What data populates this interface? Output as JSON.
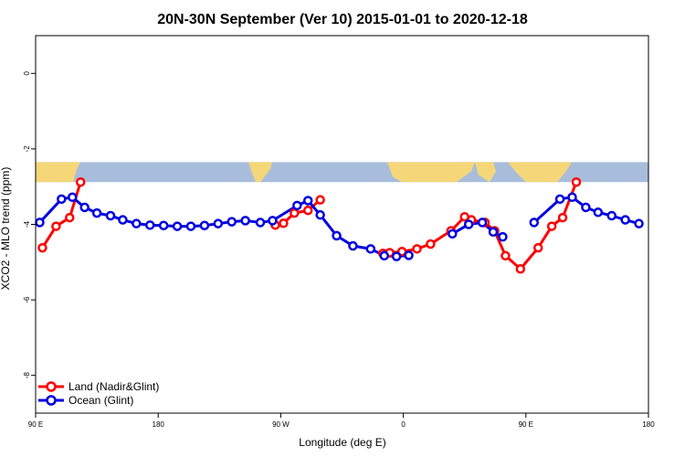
{
  "chart_data": {
    "type": "line",
    "title": "20N-30N September (Ver 10)   2015-01-01 to 2020-12-18",
    "xlabel": "Longitude (deg E)",
    "ylabel": "XCO2 - MLO trend (ppm)",
    "xlim": [
      90,
      540
    ],
    "ylim": [
      -9,
      1
    ],
    "x_ticks": [
      {
        "value": 90,
        "label": "90 E"
      },
      {
        "value": 180,
        "label": "180"
      },
      {
        "value": 270,
        "label": "90 W"
      },
      {
        "value": 360,
        "label": "0"
      },
      {
        "value": 450,
        "label": "90 E"
      },
      {
        "value": 540,
        "label": "180"
      }
    ],
    "y_ticks": [
      {
        "value": 0,
        "label": "0"
      },
      {
        "value": -2,
        "label": "-2"
      },
      {
        "value": -4,
        "label": "-4"
      },
      {
        "value": -6,
        "label": "-6"
      },
      {
        "value": -8,
        "label": "-8"
      }
    ],
    "legend_position": "bottom-left",
    "colors": {
      "land": "#ff0000",
      "ocean": "#0000e0",
      "map_ocean": "#a8bddc",
      "map_land": "#f5d779"
    },
    "map_band": {
      "lat_range": "20N-30N",
      "y_top": -2.35,
      "y_bottom": -2.88
    },
    "series": [
      {
        "name": "Land (Nadir&Glint)",
        "color": "#ff0000",
        "segments": [
          [
            [
              95,
              -4.62
            ],
            [
              105,
              -4.05
            ],
            [
              115,
              -3.82
            ],
            [
              123,
              -2.88
            ]
          ],
          [
            [
              266,
              -4.02
            ],
            [
              272,
              -3.97
            ],
            [
              280,
              -3.7
            ],
            [
              290,
              -3.63
            ],
            [
              299,
              -3.35
            ]
          ],
          [
            [
              345,
              -4.77
            ],
            [
              350,
              -4.75
            ],
            [
              359,
              -4.72
            ],
            [
              370,
              -4.65
            ],
            [
              380,
              -4.52
            ],
            [
              395,
              -4.17
            ],
            [
              405,
              -3.8
            ],
            [
              410,
              -3.88
            ],
            [
              420,
              -3.95
            ],
            [
              427,
              -4.17
            ],
            [
              435,
              -4.83
            ],
            [
              446,
              -5.18
            ],
            [
              459,
              -4.62
            ],
            [
              469,
              -4.05
            ],
            [
              477,
              -3.82
            ],
            [
              487,
              -2.88
            ]
          ]
        ]
      },
      {
        "name": "Ocean (Glint)",
        "color": "#0000e0",
        "segments": [
          [
            [
              93,
              -3.95
            ],
            [
              109,
              -3.33
            ],
            [
              117,
              -3.28
            ],
            [
              126,
              -3.55
            ],
            [
              135,
              -3.7
            ],
            [
              145,
              -3.77
            ],
            [
              154,
              -3.88
            ],
            [
              164,
              -3.98
            ],
            [
              174,
              -4.02
            ],
            [
              184,
              -4.03
            ],
            [
              194,
              -4.05
            ],
            [
              204,
              -4.05
            ],
            [
              214,
              -4.03
            ],
            [
              224,
              -3.98
            ],
            [
              234,
              -3.93
            ],
            [
              244,
              -3.9
            ],
            [
              255,
              -3.95
            ],
            [
              264,
              -3.9
            ],
            [
              282,
              -3.5
            ],
            [
              290,
              -3.37
            ],
            [
              299,
              -3.75
            ],
            [
              311,
              -4.3
            ],
            [
              323,
              -4.57
            ],
            [
              336,
              -4.65
            ],
            [
              346,
              -4.83
            ],
            [
              355,
              -4.85
            ],
            [
              364,
              -4.82
            ]
          ],
          [
            [
              396,
              -4.25
            ],
            [
              408,
              -4.0
            ],
            [
              418,
              -3.95
            ],
            [
              426,
              -4.2
            ],
            [
              433,
              -4.33
            ]
          ],
          [
            [
              456,
              -3.95
            ],
            [
              475,
              -3.33
            ],
            [
              484,
              -3.28
            ],
            [
              494,
              -3.55
            ],
            [
              503,
              -3.68
            ],
            [
              513,
              -3.77
            ],
            [
              523,
              -3.88
            ],
            [
              533,
              -3.98
            ],
            [
              543,
              -4.02
            ]
          ]
        ]
      }
    ]
  }
}
